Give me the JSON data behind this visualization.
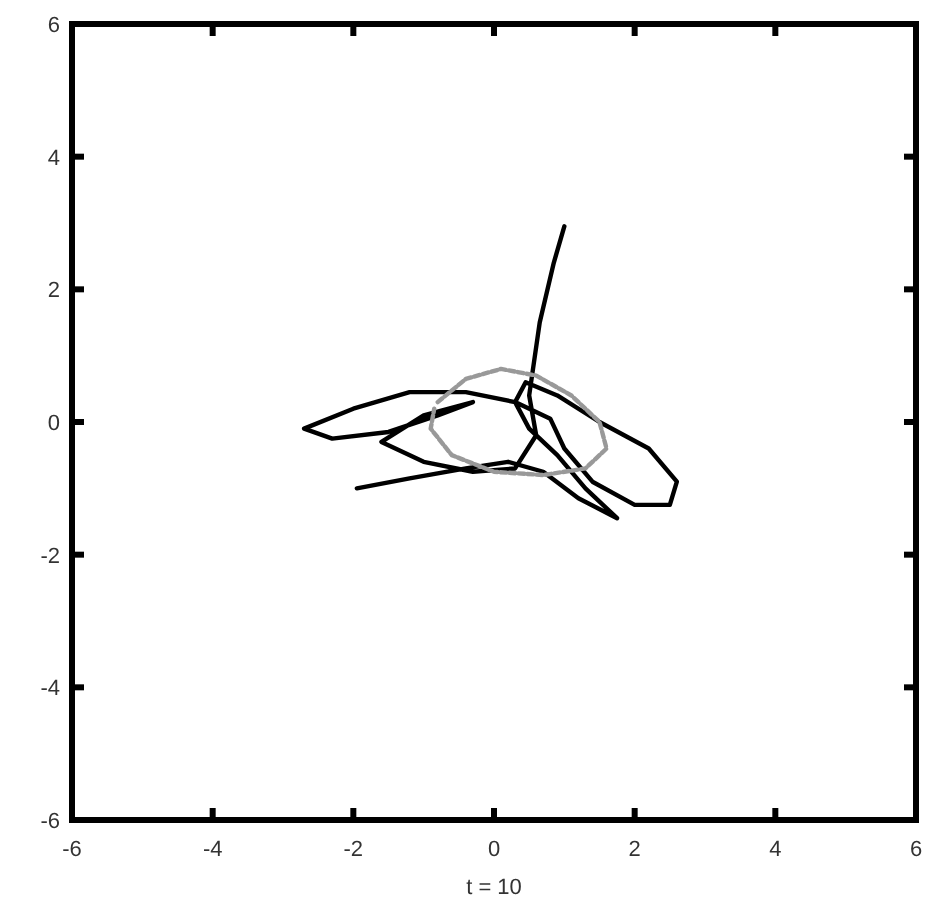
{
  "chart_data": {
    "type": "line",
    "xlabel": "t = 10",
    "xlim": [
      -6,
      6
    ],
    "ylim": [
      -6,
      6
    ],
    "xticks": [
      -6,
      -4,
      -2,
      0,
      2,
      4,
      6
    ],
    "yticks": [
      -6,
      -4,
      -2,
      0,
      2,
      4,
      6
    ],
    "grid": false,
    "marker": "none",
    "series": [
      {
        "color": "#000000",
        "line_style": "solid",
        "x": [
          -1.95,
          -1.2,
          -0.4,
          0.2,
          0.7,
          1.2,
          1.75,
          1.3,
          0.9,
          0.5,
          0.3,
          0.45,
          0.9,
          1.5,
          2.2,
          2.6,
          2.5,
          2.0,
          1.4,
          1.0,
          0.8,
          0.3,
          -0.4,
          -1.2,
          -2.0,
          -2.7,
          -2.3,
          -1.5,
          -0.8,
          -0.3,
          -1.0,
          -1.6,
          -1.0,
          -0.3,
          0.3,
          0.6,
          0.5,
          0.65,
          0.85,
          1.0
        ],
        "values": [
          -1.0,
          -0.85,
          -0.7,
          -0.6,
          -0.75,
          -1.15,
          -1.45,
          -1.0,
          -0.5,
          -0.1,
          0.3,
          0.6,
          0.4,
          0.0,
          -0.4,
          -0.9,
          -1.25,
          -1.25,
          -0.9,
          -0.4,
          0.05,
          0.3,
          0.45,
          0.45,
          0.2,
          -0.1,
          -0.25,
          -0.15,
          0.1,
          0.3,
          0.1,
          -0.3,
          -0.6,
          -0.75,
          -0.7,
          -0.2,
          0.4,
          1.5,
          2.4,
          2.95
        ]
      },
      {
        "color": "#999999",
        "line_style": "dotted",
        "x": [
          -0.8,
          -0.4,
          0.1,
          0.6,
          1.1,
          1.5,
          1.6,
          1.3,
          0.7,
          0.0,
          -0.6,
          -0.9,
          -0.85
        ],
        "values": [
          0.3,
          0.65,
          0.8,
          0.7,
          0.4,
          0.0,
          -0.4,
          -0.7,
          -0.8,
          -0.75,
          -0.5,
          -0.1,
          0.2
        ]
      }
    ]
  }
}
